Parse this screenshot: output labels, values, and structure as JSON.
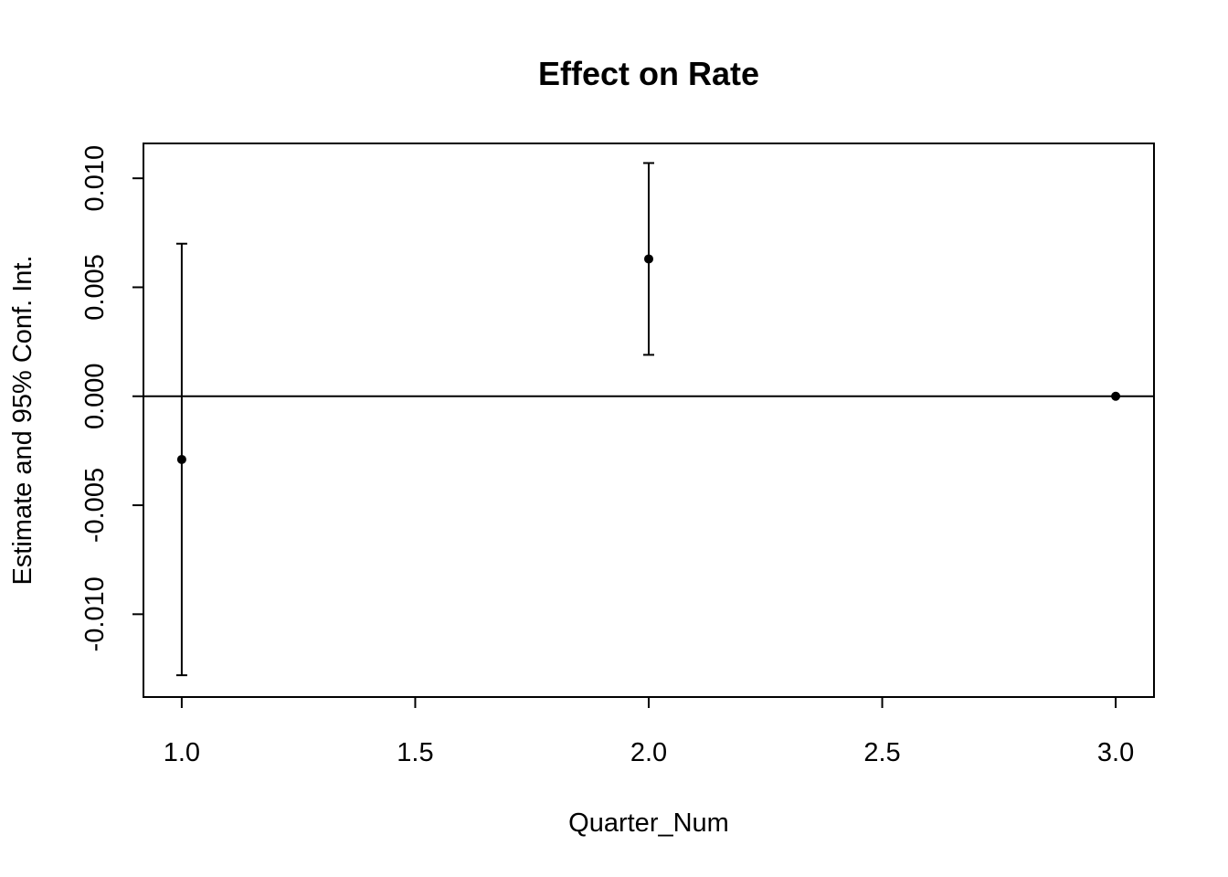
{
  "chart_data": {
    "type": "scatter",
    "title": "Effect on Rate",
    "xlabel": "Quarter_Num",
    "ylabel": "Estimate and 95% Conf. Int.",
    "xlim": [
      0.918,
      3.082
    ],
    "ylim": [
      -0.0138,
      0.0116
    ],
    "x_ticks": [
      1.0,
      1.5,
      2.0,
      2.5,
      3.0
    ],
    "x_tick_labels": [
      "1.0",
      "1.5",
      "2.0",
      "2.5",
      "3.0"
    ],
    "y_ticks": [
      -0.01,
      -0.005,
      0.0,
      0.005,
      0.01
    ],
    "y_tick_labels": [
      "-0.010",
      "-0.005",
      "0.000",
      "0.005",
      "0.010"
    ],
    "reference_line_y": 0,
    "grid": false,
    "points": [
      {
        "x": 1,
        "estimate": -0.0029,
        "lower": -0.0128,
        "upper": 0.007
      },
      {
        "x": 2,
        "estimate": 0.0063,
        "lower": 0.0019,
        "upper": 0.0107
      },
      {
        "x": 3,
        "estimate": 0.0,
        "lower": 0.0,
        "upper": 0.0
      }
    ]
  }
}
